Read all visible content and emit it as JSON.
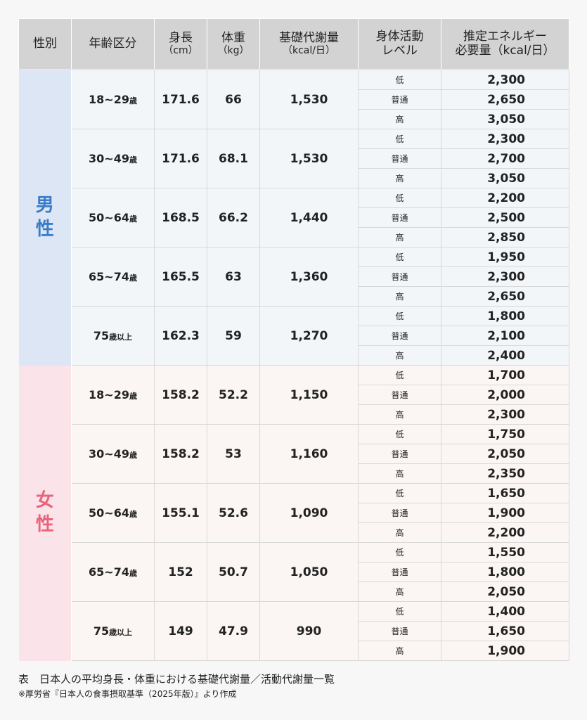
{
  "headers": {
    "sex": "性別",
    "age": "年齢区分",
    "height": "身長",
    "height_unit": "（cm）",
    "weight": "体重",
    "weight_unit": "（kg）",
    "bmr": "基礎代謝量",
    "bmr_unit": "（kcal/日）",
    "activity": "身体活動",
    "activity_2": "レベル",
    "energy": "推定エネルギー",
    "energy_2": "必要量（kcal/日）"
  },
  "levels": [
    "低",
    "普通",
    "高"
  ],
  "age_suffix": "歳",
  "colors": {
    "male": "#3a7cc8",
    "female": "#e8647c",
    "male_side": "#dce6f4",
    "male_body": "#f3f6f9",
    "female_side": "#fbe3ea",
    "female_body": "#fbf6f4",
    "header": "#d3d3d3"
  },
  "groups": [
    {
      "sex": "男性",
      "key": "male",
      "rows": [
        {
          "age": "18~29",
          "sai": "歳",
          "height": "171.6",
          "weight": "66",
          "bmr": "1,530",
          "energy": [
            "2,300",
            "2,650",
            "3,050"
          ]
        },
        {
          "age": "30~49",
          "sai": "歳",
          "height": "171.6",
          "weight": "68.1",
          "bmr": "1,530",
          "energy": [
            "2,300",
            "2,700",
            "3,050"
          ]
        },
        {
          "age": "50~64",
          "sai": "歳",
          "height": "168.5",
          "weight": "66.2",
          "bmr": "1,440",
          "energy": [
            "2,200",
            "2,500",
            "2,850"
          ]
        },
        {
          "age": "65~74",
          "sai": "歳",
          "height": "165.5",
          "weight": "63",
          "bmr": "1,360",
          "energy": [
            "1,950",
            "2,300",
            "2,650"
          ]
        },
        {
          "age": "75",
          "sai": "歳以上",
          "height": "162.3",
          "weight": "59",
          "bmr": "1,270",
          "energy": [
            "1,800",
            "2,100",
            "2,400"
          ]
        }
      ]
    },
    {
      "sex": "女性",
      "key": "female",
      "rows": [
        {
          "age": "18~29",
          "sai": "歳",
          "height": "158.2",
          "weight": "52.2",
          "bmr": "1,150",
          "energy": [
            "1,700",
            "2,000",
            "2,300"
          ]
        },
        {
          "age": "30~49",
          "sai": "歳",
          "height": "158.2",
          "weight": "53",
          "bmr": "1,160",
          "energy": [
            "1,750",
            "2,050",
            "2,350"
          ]
        },
        {
          "age": "50~64",
          "sai": "歳",
          "height": "155.1",
          "weight": "52.6",
          "bmr": "1,090",
          "energy": [
            "1,650",
            "1,900",
            "2,200"
          ]
        },
        {
          "age": "65~74",
          "sai": "歳",
          "height": "152",
          "weight": "50.7",
          "bmr": "1,050",
          "energy": [
            "1,550",
            "1,800",
            "2,050"
          ]
        },
        {
          "age": "75",
          "sai": "歳以上",
          "height": "149",
          "weight": "47.9",
          "bmr": "990",
          "energy": [
            "1,400",
            "1,650",
            "1,900"
          ]
        }
      ]
    }
  ],
  "caption": "表　日本人の平均身長・体重における基礎代謝量／活動代謝量一覧",
  "note": "※厚労省『日本人の食事摂取基準（2025年版）』より作成"
}
